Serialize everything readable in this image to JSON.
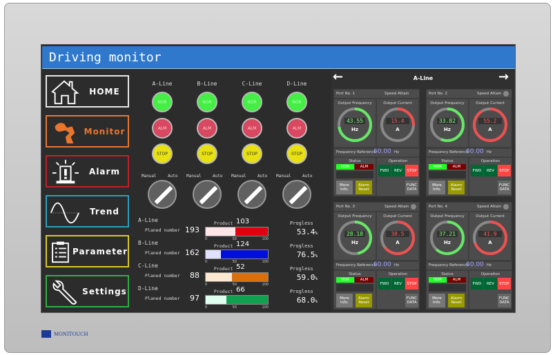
{
  "title": "Driving monitor",
  "brand": "MONITOUCH",
  "nav": [
    {
      "label": "HOME",
      "icon": "home-icon",
      "color": "#e8e8e8"
    },
    {
      "label": "Monitor",
      "icon": "robot-arm-icon",
      "color": "#e8762f"
    },
    {
      "label": "Alarm",
      "icon": "alarm-beacon-icon",
      "color": "#c0202a"
    },
    {
      "label": "Trend",
      "icon": "sine-wave-icon",
      "color": "#2a9fc0"
    },
    {
      "label": "Parameter",
      "icon": "clipboard-icon",
      "color": "#d8c828"
    },
    {
      "label": "Settings",
      "icon": "wrench-icon",
      "color": "#2fb040"
    }
  ],
  "lines": [
    {
      "name": "A-Line",
      "nor": "NOR",
      "alm": "ALM",
      "stop": "STOP",
      "manual": "Manual",
      "auto": "Auto",
      "planned_label": "Planed number",
      "planned": "193",
      "product_label": "Product",
      "product": "103",
      "progress_label": "Progless",
      "progress": "53.4",
      "unit": "%",
      "bar_color": "#e00010",
      "bar_light": "#ffe4e8",
      "bar_fill": 48
    },
    {
      "name": "B-Line",
      "nor": "NOR",
      "alm": "ALM",
      "stop": "STOP",
      "manual": "Manual",
      "auto": "Auto",
      "planned_label": "Planed number",
      "planned": "162",
      "product_label": "Product",
      "product": "124",
      "progress_label": "Progless",
      "progress": "76.5",
      "unit": "%",
      "bar_color": "#0010d8",
      "bar_light": "#e0e0ff",
      "bar_fill": 24
    },
    {
      "name": "C-Line",
      "nor": "NOR",
      "alm": "ALM",
      "stop": "STOP",
      "manual": "Manual",
      "auto": "Auto",
      "planned_label": "Planed number",
      "planned": "88",
      "product_label": "Product",
      "product": "52",
      "progress_label": "Progless",
      "progress": "59.0",
      "unit": "%",
      "bar_color": "#d87010",
      "bar_light": "#ffe8d0",
      "bar_fill": 42
    },
    {
      "name": "D-Line",
      "nor": "NOR",
      "alm": "ALM",
      "stop": "STOP",
      "manual": "Manual",
      "auto": "Auto",
      "planned_label": "Planed number",
      "planned": "97",
      "product_label": "Product",
      "product": "66",
      "progress_label": "Progless",
      "progress": "68.0",
      "unit": "%",
      "bar_color": "#10a050",
      "bar_light": "#e0fff0",
      "bar_fill": 33
    }
  ],
  "scale": [
    "0",
    "50",
    "100"
  ],
  "right": {
    "title": "A-Line",
    "prev": "←",
    "next": "→"
  },
  "ports": [
    {
      "name": "Port No. 1",
      "speed": "Speed Attain",
      "lamp": false,
      "freq_label": "Output Frequency",
      "freq": "43.55",
      "freq_unit": "Hz",
      "cur_label": "Output Current",
      "cur": "15.4",
      "cur_unit": "A",
      "ref_label": "Frequency Reference",
      "ref": "60.00",
      "ref_unit": "Hz",
      "status": "Status",
      "nor": "NOR",
      "alm": "ALM",
      "more": "More Info.",
      "reset": "Alarm Reset",
      "operation": "Operation",
      "fwd": "FWD",
      "rev": "REV",
      "stop": "STOP",
      "func": "FUNC DATA"
    },
    {
      "name": "Port No. 2",
      "speed": "Speed Attain",
      "lamp": true,
      "freq_label": "Output Frequency",
      "freq": "33.82",
      "freq_unit": "Hz",
      "cur_label": "Output Current",
      "cur": "55.2",
      "cur_unit": "A",
      "ref_label": "Frequency Reference",
      "ref": "60.00",
      "ref_unit": "Hz",
      "status": "Status",
      "nor": "NOR",
      "alm": "ALM",
      "more": "More Info.",
      "reset": "Alarm Reset",
      "operation": "Operation",
      "fwd": "FWD",
      "rev": "REV",
      "stop": "STOP",
      "func": "FUNC DATA"
    },
    {
      "name": "Port No. 3",
      "speed": "Speed Attain",
      "lamp": true,
      "freq_label": "Output Frequency",
      "freq": "28.18",
      "freq_unit": "Hz",
      "cur_label": "Output Current",
      "cur": "38.5",
      "cur_unit": "A",
      "ref_label": "Frequency Reference",
      "ref": "60.00",
      "ref_unit": "Hz",
      "status": "Status",
      "nor": "NOR",
      "alm": "ALM",
      "more": "More Info.",
      "reset": "Alarm Reset",
      "operation": "Operation",
      "fwd": "FWD",
      "rev": "REV",
      "stop": "STOP",
      "func": "FUNC DATA"
    },
    {
      "name": "Port No. 4",
      "speed": "Speed Attain",
      "lamp": true,
      "freq_label": "Output Frequency",
      "freq": "37.21",
      "freq_unit": "Hz",
      "cur_label": "Output Current",
      "cur": "41.9",
      "cur_unit": "A",
      "ref_label": "Frequency Reference",
      "ref": "60.00",
      "ref_unit": "Hz",
      "status": "Status",
      "nor": "NOR",
      "alm": "ALM",
      "more": "More Info.",
      "reset": "Alarm Reset",
      "operation": "Operation",
      "fwd": "FWD",
      "rev": "REV",
      "stop": "STOP",
      "func": "FUNC DATA"
    }
  ],
  "gauge_max": 60,
  "colors": {
    "title_bar": "#2f78cc",
    "nor": "#44ee44",
    "alm": "#d84860",
    "stop": "#e8e010",
    "freq_arc": "#66e866",
    "cur_arc": "#ee5050",
    "ref_text": "#a0a0ff"
  }
}
